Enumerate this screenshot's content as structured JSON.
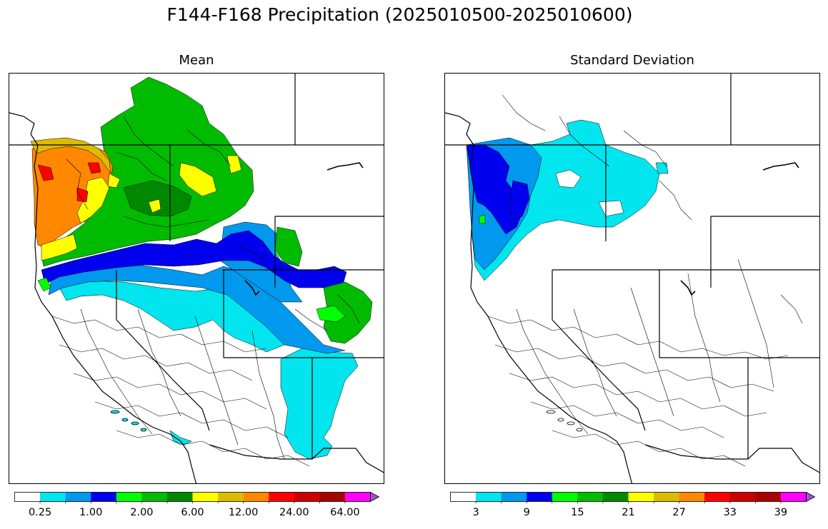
{
  "figure": {
    "title": "F144-F168 Precipitation (2025010500-2025010600)"
  },
  "panels": [
    {
      "title": "Mean",
      "colorbar": {
        "tick_labels": [
          "0.25",
          "1.00",
          "2.00",
          "6.00",
          "12.00",
          "24.00",
          "64.00"
        ],
        "colors": [
          "#ffffff",
          "#00e5ee",
          "#0099ee",
          "#0000ee",
          "#00ff00",
          "#00bb00",
          "#008800",
          "#ffff00",
          "#ddbb00",
          "#ff8800",
          "#ff0000",
          "#cc0000",
          "#aa0000",
          "#ff00ff",
          "#9955cc"
        ],
        "extend": "max"
      }
    },
    {
      "title": "Standard Deviation",
      "colorbar": {
        "tick_labels": [
          "3",
          "9",
          "15",
          "21",
          "27",
          "33",
          "39"
        ],
        "colors": [
          "#ffffff",
          "#00e5ee",
          "#0099ee",
          "#0000ee",
          "#00ff00",
          "#00bb00",
          "#008800",
          "#ffff00",
          "#ddbb00",
          "#ff8800",
          "#ff0000",
          "#cc0000",
          "#aa0000",
          "#ff00ff",
          "#9955cc"
        ],
        "extend": "max"
      }
    }
  ],
  "map": {
    "region": "western-united-states",
    "basemap": "river-basin-boundaries"
  }
}
